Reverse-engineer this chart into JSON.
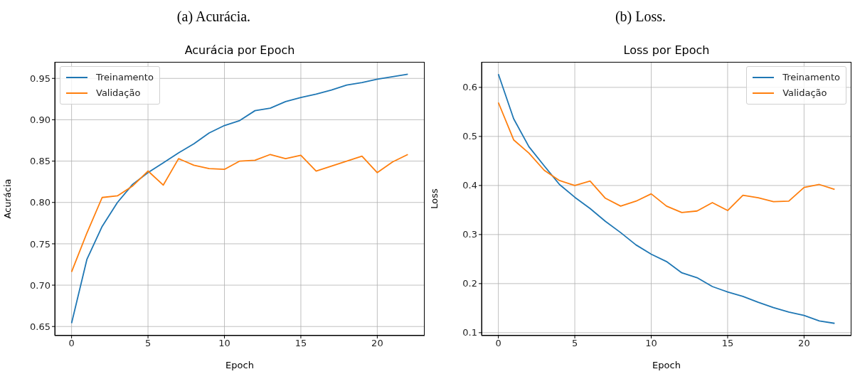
{
  "chart_data": [
    {
      "type": "line",
      "annotations": [
        "(a) Acurácia."
      ],
      "title": "Acurácia por Epoch",
      "xlabel": "Epoch",
      "ylabel": "Acurácia",
      "x": [
        0,
        1,
        2,
        3,
        4,
        5,
        6,
        7,
        8,
        9,
        10,
        11,
        12,
        13,
        14,
        15,
        16,
        17,
        18,
        19,
        20,
        21,
        22
      ],
      "series": [
        {
          "name": "Treinamento",
          "color": "#1f77b4",
          "values": [
            0.654,
            0.731,
            0.771,
            0.8,
            0.822,
            0.836,
            0.848,
            0.86,
            0.871,
            0.884,
            0.893,
            0.899,
            0.911,
            0.914,
            0.922,
            0.927,
            0.931,
            0.936,
            0.942,
            0.945,
            0.949,
            0.952,
            0.955
          ]
        },
        {
          "name": "Validação",
          "color": "#ff7f0e",
          "values": [
            0.716,
            0.763,
            0.806,
            0.808,
            0.82,
            0.838,
            0.821,
            0.853,
            0.845,
            0.841,
            0.84,
            0.85,
            0.851,
            0.858,
            0.853,
            0.857,
            0.838,
            0.844,
            0.85,
            0.856,
            0.836,
            0.849,
            0.858
          ]
        }
      ],
      "xlim": [
        -1.1,
        23.1
      ],
      "ylim": [
        0.639,
        0.97
      ],
      "xticks": [
        0,
        5,
        10,
        15,
        20
      ],
      "yticks": [
        0.65,
        {
          "value": 0.7,
          "label": "0.70"
        },
        0.75,
        {
          "value": 0.8,
          "label": "0.80"
        },
        0.85,
        {
          "value": 0.9,
          "label": "0.90"
        },
        0.95
      ],
      "grid": true,
      "legend": "top left"
    },
    {
      "type": "line",
      "annotations": [
        "(b) Loss."
      ],
      "title": "Loss por Epoch",
      "xlabel": "Epoch",
      "ylabel": "Loss",
      "x": [
        0,
        1,
        2,
        3,
        4,
        5,
        6,
        7,
        8,
        9,
        10,
        11,
        12,
        13,
        14,
        15,
        16,
        17,
        18,
        19,
        20,
        21,
        22
      ],
      "series": [
        {
          "name": "Treinamento",
          "color": "#1f77b4",
          "values": [
            0.627,
            0.536,
            0.479,
            0.44,
            0.402,
            0.376,
            0.353,
            0.327,
            0.304,
            0.279,
            0.26,
            0.245,
            0.222,
            0.212,
            0.194,
            0.183,
            0.174,
            0.162,
            0.151,
            0.142,
            0.135,
            0.124,
            0.119
          ]
        },
        {
          "name": "Validação",
          "color": "#ff7f0e",
          "values": [
            0.569,
            0.493,
            0.466,
            0.431,
            0.41,
            0.4,
            0.409,
            0.374,
            0.358,
            0.368,
            0.383,
            0.358,
            0.345,
            0.348,
            0.365,
            0.349,
            0.38,
            0.375,
            0.367,
            0.368,
            0.396,
            0.402,
            0.392
          ]
        }
      ],
      "xlim": [
        -1.1,
        23.1
      ],
      "ylim": [
        0.094,
        0.652
      ],
      "xticks": [
        0,
        5,
        10,
        15,
        20
      ],
      "yticks": [
        0.1,
        0.2,
        0.3,
        0.4,
        0.5,
        0.6
      ],
      "grid": true,
      "legend": "top right"
    }
  ]
}
